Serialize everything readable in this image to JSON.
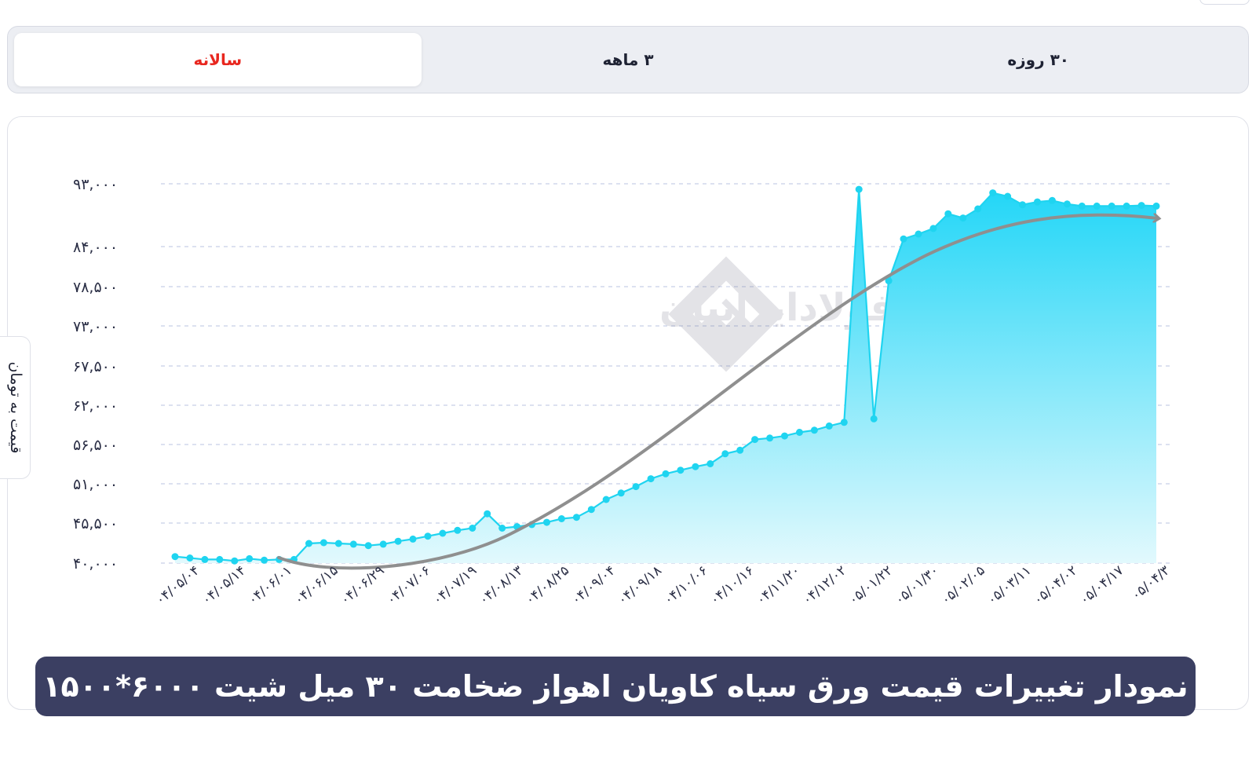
{
  "tabs": [
    {
      "label": "۳۰ روزه",
      "active": false
    },
    {
      "label": "۳ ماهه",
      "active": false
    },
    {
      "label": "سالانه",
      "active": true
    }
  ],
  "watermark": "فولادایرانیان",
  "chart_data": {
    "type": "area",
    "title": "نمودار تغییرات قیمت ورق سیاه کاویان اهواز ضخامت ۳۰ میل شیت ۶۰۰۰*۱۵۰۰",
    "ylabel": "قیمت به تومان",
    "xlabel": "",
    "yticks": [
      "۴۰,۰۰۰",
      "۴۵,۵۰۰",
      "۵۱,۰۰۰",
      "۵۶,۵۰۰",
      "۶۲,۰۰۰",
      "۶۷,۵۰۰",
      "۷۳,۰۰۰",
      "۷۸,۵۰۰",
      "۸۴,۰۰۰",
      "۹۳,۰۰۰"
    ],
    "ytick_values": [
      40000,
      45500,
      51000,
      56500,
      62000,
      67500,
      73000,
      78500,
      84000,
      93000
    ],
    "xticks": [
      "۰۴/۰۵/۰۴",
      "۰۴/۰۵/۱۴",
      "۰۴/۰۶/۰۱",
      "۰۴/۰۶/۱۵",
      "۰۴/۰۶/۲۹",
      "۰۴/۰۷/۰۶",
      "۰۴/۰۷/۱۹",
      "۰۴/۰۸/۱۳",
      "۰۴/۰۸/۲۵",
      "۰۴/۰۹/۰۴",
      "۰۴/۰۹/۱۸",
      "۰۴/۱۰/۰۶",
      "۰۴/۱۰/۱۶",
      "۰۴/۱۱/۲۰",
      "۰۴/۱۲/۰۲",
      "۰۵/۰۱/۲۲",
      "۰۵/۰۱/۳۰",
      "۰۵/۰۲/۰۵",
      "۰۵/۰۳/۱۱",
      "۰۵/۰۴/۰۲",
      "۰۵/۰۴/۱۷",
      "۰۵/۰۴/۳"
    ],
    "grid": true,
    "trend_arrow": true,
    "colors": {
      "line": "#1fd4f0",
      "area_top": "#22d6f7",
      "area_bottom": "#e2f9fd",
      "trend": "#8f8f8f",
      "grid": "#c7cfe8"
    },
    "series": [
      {
        "values": [
          40900,
          40700,
          40500,
          40500,
          40300,
          40600,
          40400,
          40500,
          40500,
          42700,
          42800,
          42700,
          42600,
          42400,
          42600,
          43000,
          43300,
          43700,
          44100,
          44500,
          44800,
          46800,
          44800,
          45000,
          45300,
          45600,
          46100,
          46300,
          47400,
          48800,
          49700,
          50600,
          51700,
          52400,
          52900,
          53400,
          53800,
          55200,
          55700,
          57200,
          57400,
          57700,
          58200,
          58500,
          59100,
          59600,
          92200,
          60100,
          79300,
          85100,
          85800,
          86600,
          88700,
          88100,
          89400,
          91700,
          91200,
          90000,
          90400,
          90600,
          90100,
          89800,
          89800,
          89800,
          89800,
          89900,
          89800
        ]
      }
    ]
  }
}
